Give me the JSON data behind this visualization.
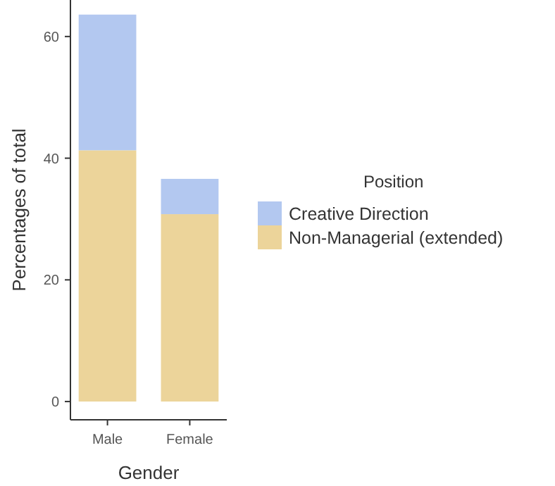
{
  "chart_data": {
    "type": "bar",
    "stacked": true,
    "xlabel": "Gender",
    "ylabel": "Percentages of total",
    "legend_title": "Position",
    "legend": "right",
    "grid": false,
    "categories": [
      "Male",
      "Female"
    ],
    "series": [
      {
        "name": "Non-Managerial (extended)",
        "color": "#ecd49a",
        "values": [
          41.3,
          30.8
        ]
      },
      {
        "name": "Creative Direction",
        "color": "#b3c8f0",
        "values": [
          22.3,
          5.8
        ]
      }
    ],
    "ylim": [
      -3,
      66
    ],
    "yticks": [
      0,
      20,
      40,
      60
    ]
  }
}
